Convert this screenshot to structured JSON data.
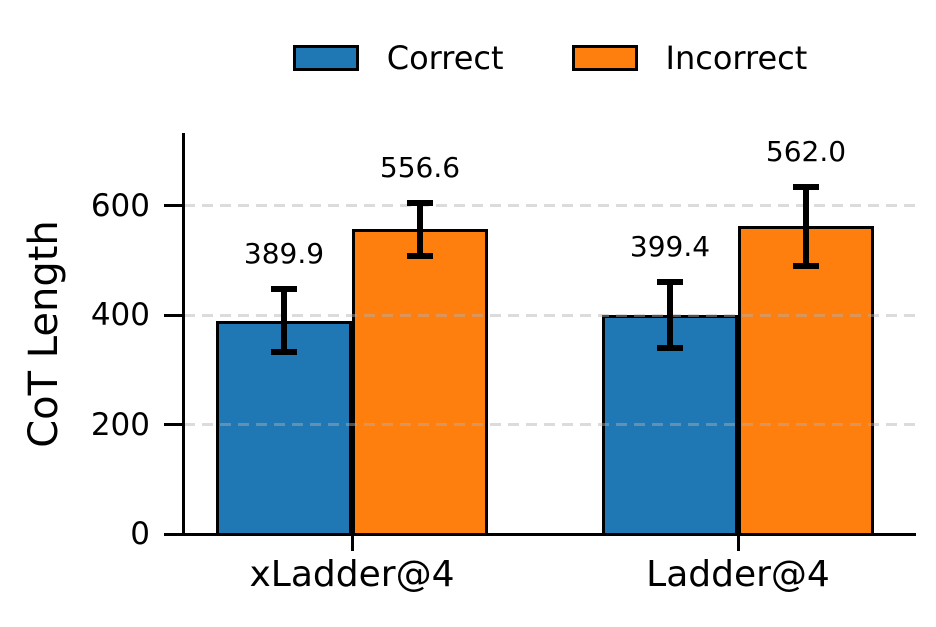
{
  "chart_data": {
    "type": "bar",
    "title": "",
    "xlabel": "",
    "ylabel": "CoT Length",
    "categories": [
      "xLadder@4",
      "Ladder@4"
    ],
    "series": [
      {
        "name": "Correct",
        "color": "#1f77b4",
        "values": [
          389.9,
          399.4
        ],
        "errors": [
          58,
          60
        ],
        "labels": [
          "389.9",
          "399.4"
        ]
      },
      {
        "name": "Incorrect",
        "color": "#ff7f0e",
        "values": [
          556.6,
          562.0
        ],
        "errors": [
          48,
          72
        ],
        "labels": [
          "556.6",
          "562.0"
        ]
      }
    ],
    "yticks": [
      0,
      200,
      400,
      600
    ],
    "ytick_labels": [
      "0",
      "200",
      "400",
      "600"
    ],
    "ylim": [
      0,
      732
    ],
    "grid": {
      "axis": "y",
      "style": "dashed",
      "color": "#b0b0b0",
      "alpha": 0.45,
      "drawn_over_bars": true
    },
    "legend": {
      "position": "top-center",
      "entries": [
        "Correct",
        "Incorrect"
      ]
    },
    "bar_edge_color": "#000000",
    "error_bar_color": "#000000",
    "text_color": "#000000",
    "background": "#ffffff"
  }
}
